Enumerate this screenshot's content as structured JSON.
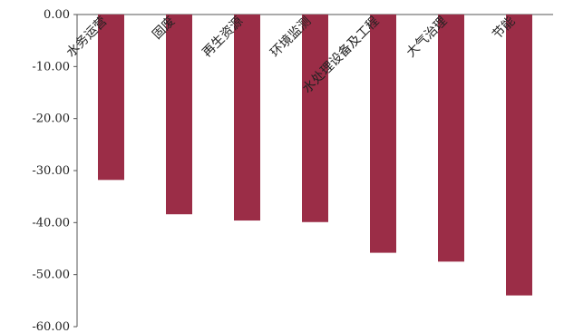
{
  "chart_data": {
    "type": "bar",
    "categories": [
      "水务运营",
      "固废",
      "再生资源",
      "环境监测",
      "水处理设备及工程",
      "大气治理",
      "节能"
    ],
    "series": [
      {
        "values": [
          -31.8,
          -38.4,
          -39.6,
          -39.9,
          -45.8,
          -47.5,
          -54.0
        ]
      }
    ],
    "ylim": [
      -60,
      0
    ],
    "yticks": [
      0,
      -10,
      -20,
      -30,
      -40,
      -50,
      -60
    ],
    "ytick_labels": [
      "0.00",
      "-10.00",
      "-20.00",
      "-30.00",
      "-40.00",
      "-50.00",
      "-60.00"
    ],
    "grid": false,
    "legend": "none",
    "colors": {
      "bar": "#9b2d47",
      "axis": "#555555"
    }
  }
}
